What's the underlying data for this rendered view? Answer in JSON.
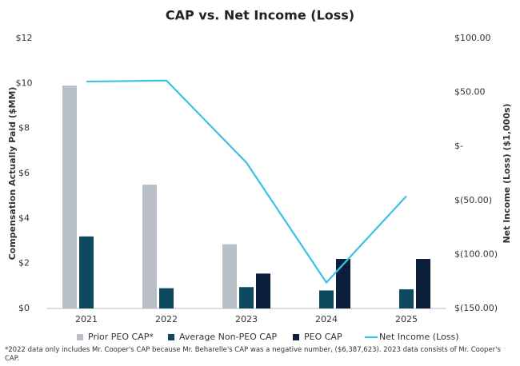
{
  "chart_data": {
    "type": "bar",
    "title": "CAP vs. Net Income (Loss)",
    "y_label": "Compensation Actually Paid ($MM)",
    "y2_label": "Net Income (Loss) ($1,000s)",
    "categories": [
      "2021",
      "2022",
      "2023",
      "2024",
      "2025"
    ],
    "series": [
      {
        "name": "Prior PEO CAP*",
        "color": "#b9bfc7",
        "values": [
          9.9,
          5.5,
          2.85,
          null,
          null
        ]
      },
      {
        "name": "Average Non-PEO CAP",
        "color": "#0e4a5f",
        "values": [
          3.2,
          0.9,
          0.95,
          0.8,
          0.85
        ]
      },
      {
        "name": "PEO CAP",
        "color": "#0b1f3a",
        "values": [
          null,
          null,
          1.55,
          2.2,
          2.2
        ]
      },
      {
        "name": "Net Income (Loss)",
        "color": "#3fc0e8",
        "type": "line",
        "axis": "y2",
        "values": [
          60,
          61,
          -15,
          -126,
          -46
        ]
      }
    ],
    "ylim": [
      0,
      12
    ],
    "yticks": [
      {
        "value": 0,
        "label": "$0"
      },
      {
        "value": 2,
        "label": "$2"
      },
      {
        "value": 4,
        "label": "$4"
      },
      {
        "value": 6,
        "label": "$6"
      },
      {
        "value": 8,
        "label": "$8"
      },
      {
        "value": 10,
        "label": "$10"
      },
      {
        "value": 12,
        "label": "$12"
      }
    ],
    "y2lim": [
      -150,
      100
    ],
    "y2ticks": [
      {
        "value": -150,
        "label": "$(150.00)"
      },
      {
        "value": -100,
        "label": "$(100.00)"
      },
      {
        "value": -50,
        "label": "$(50.00)"
      },
      {
        "value": 0,
        "label": "$-"
      },
      {
        "value": 50,
        "label": "$50.00"
      },
      {
        "value": 100,
        "label": "$100.00"
      }
    ],
    "grid": false,
    "legend": "bottom",
    "footnote": "*2022 data only includes Mr. Cooper's CAP because Mr. Beharelle's CAP was a negative number, ($6,387,623). 2023 data consists of Mr. Cooper's CAP."
  }
}
